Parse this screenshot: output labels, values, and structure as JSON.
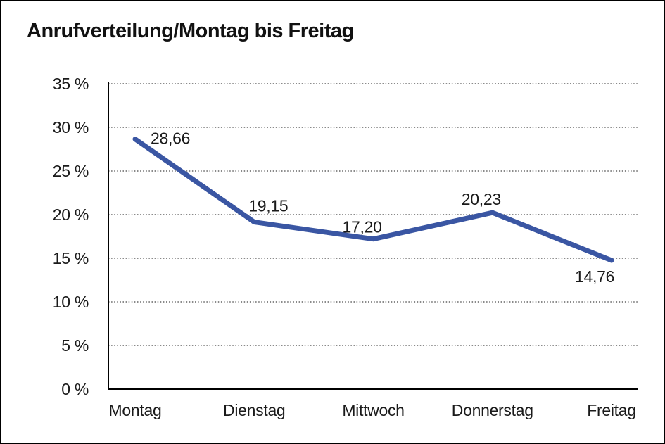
{
  "window": {
    "title": "Anrufverteilung/Montag bis Freitag"
  },
  "chart_data": {
    "type": "line",
    "title": "Anrufverteilung/Montag bis Freitag",
    "categories": [
      "Montag",
      "Dienstag",
      "Mittwoch",
      "Donnerstag",
      "Freitag"
    ],
    "series": [
      {
        "name": "Anrufverteilung",
        "values": [
          28.66,
          19.15,
          17.2,
          20.23,
          14.76
        ],
        "value_labels": [
          "28,66",
          "19,15",
          "17,20",
          "20,23",
          "14,76"
        ]
      }
    ],
    "xlabel": "",
    "ylabel": "",
    "ylim": [
      0,
      35
    ],
    "y_ticks": [
      {
        "value": 0,
        "label": "0 %"
      },
      {
        "value": 5,
        "label": "5 %"
      },
      {
        "value": 10,
        "label": "10 %"
      },
      {
        "value": 15,
        "label": "15 %"
      },
      {
        "value": 20,
        "label": "20 %"
      },
      {
        "value": 25,
        "label": "25 %"
      },
      {
        "value": 30,
        "label": "30 %"
      },
      {
        "value": 35,
        "label": "35 %"
      }
    ],
    "grid": "horizontal-dotted",
    "legend": "none",
    "colors": {
      "line": "#3a56a3",
      "text": "#1a1a1a",
      "grid": "#444444",
      "axis": "#000000",
      "background": "#ffffff"
    }
  }
}
